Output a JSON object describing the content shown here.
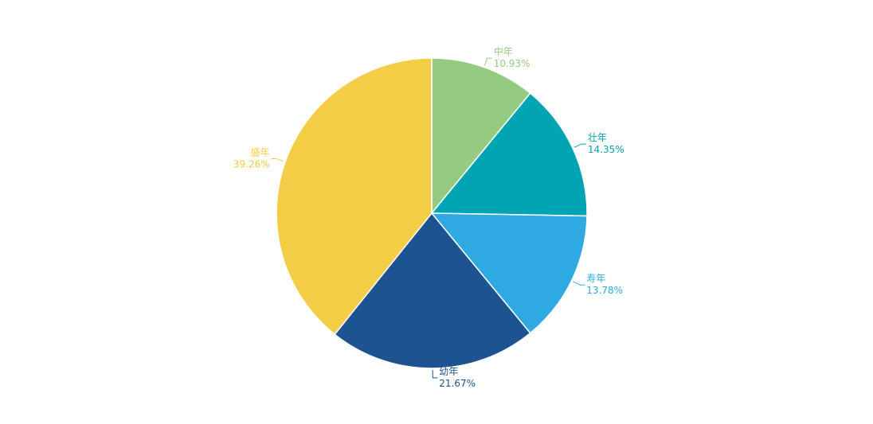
{
  "chart_data": {
    "type": "pie",
    "title": "",
    "legend": "none",
    "slices": [
      {
        "name": "中年",
        "label": "10.93%",
        "value": 10.93,
        "color": "#95cb80"
      },
      {
        "name": "壮年",
        "label": "14.35%",
        "value": 14.35,
        "color": "#01a4b2"
      },
      {
        "name": "寿年",
        "label": "13.78%",
        "value": 13.78,
        "color": "#2ea9e2"
      },
      {
        "name": "幼年",
        "label": "21.67%",
        "value": 21.67,
        "color": "#1c5390"
      },
      {
        "name": "盛年",
        "label": "39.26%",
        "value": 39.26,
        "color": "#f4cd46"
      }
    ]
  }
}
